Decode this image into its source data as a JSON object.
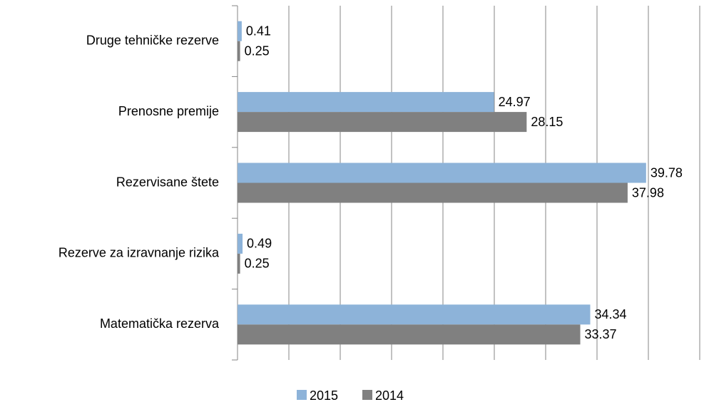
{
  "chart_data": {
    "type": "bar",
    "orientation": "horizontal",
    "categories": [
      "Druge tehničke rezerve",
      "Prenosne premije",
      "Rezervisane štete",
      "Rezerve za izravnanje rizika",
      "Matematička rezerva"
    ],
    "series": [
      {
        "name": "2015",
        "color": "#8db3d9",
        "values": [
          0.41,
          24.97,
          39.78,
          0.49,
          34.34
        ]
      },
      {
        "name": "2014",
        "color": "#808080",
        "values": [
          0.25,
          28.15,
          37.98,
          0.25,
          33.37
        ]
      }
    ],
    "xlim": [
      0,
      45
    ],
    "xticks": [
      0,
      5,
      10,
      15,
      20,
      25,
      30,
      35,
      40,
      45
    ],
    "grid": true,
    "legend": "bottom"
  }
}
